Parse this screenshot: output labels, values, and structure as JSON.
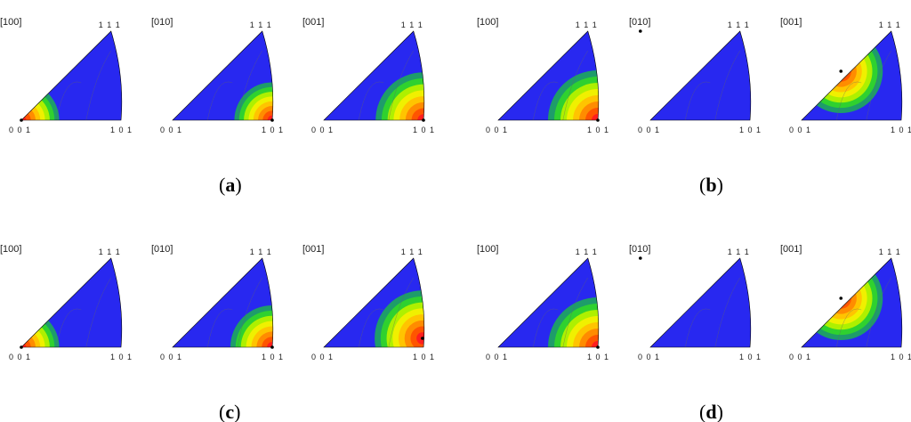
{
  "colors": {
    "background": "#2828f0",
    "levels": [
      "#2828f0",
      "#1e9c6a",
      "#2fd12f",
      "#aef000",
      "#f0f000",
      "#ffc400",
      "#ff8c00",
      "#ff5500",
      "#ff1e1e"
    ],
    "outline": "#000000",
    "grid": "#666666"
  },
  "rows": [
    {
      "groups": [
        {
          "caption": {
            "open": "(",
            "letter": "a",
            "close": ")"
          },
          "panels": [
            {
              "direction": "[100]",
              "corners": {
                "top": "1 1 1",
                "left": "0 0 1",
                "right": "1 0 1"
              },
              "peak": {
                "u": 0.0,
                "v": 0.0
              },
              "radius": 0.38
            },
            {
              "direction": "[010]",
              "corners": {
                "top": "1 1 1",
                "left": "0 0 1",
                "right": "1 0 1"
              },
              "peak": {
                "u": 1.0,
                "v": 0.0
              },
              "radius": 0.38
            },
            {
              "direction": "[001]",
              "corners": {
                "top": "1 1 1",
                "left": "0 0 1",
                "right": "1 0 1"
              },
              "peak": {
                "u": 1.0,
                "v": 0.0
              },
              "radius": 0.48
            }
          ]
        },
        {
          "caption": {
            "open": "(",
            "letter": "b",
            "close": ")"
          },
          "panels": [
            {
              "direction": "[100]",
              "corners": {
                "top": "1 1 1",
                "left": "0 0 1",
                "right": "1 0 1"
              },
              "peak": {
                "u": 1.0,
                "v": 0.0
              },
              "radius": 0.5
            },
            {
              "direction": "[010]",
              "corners": {
                "top": "1 1 1",
                "left": "0 0 1",
                "right": "1 0 1"
              },
              "peak": {
                "u": 0.0,
                "v": 1.0
              },
              "radius": 0.48
            },
            {
              "direction": "[001]",
              "corners": {
                "top": "1 1 1",
                "left": "0 0 1",
                "right": "1 0 1"
              },
              "peak": {
                "u": 0.45,
                "v": 0.55
              },
              "radius": 0.42
            }
          ]
        }
      ]
    },
    {
      "groups": [
        {
          "caption": {
            "open": "(",
            "letter": "c",
            "close": ")"
          },
          "panels": [
            {
              "direction": "[100]",
              "corners": {
                "top": "1 1 1",
                "left": "0 0 1",
                "right": "1 0 1"
              },
              "peak": {
                "u": 0.0,
                "v": 0.0
              },
              "radius": 0.38
            },
            {
              "direction": "[010]",
              "corners": {
                "top": "1 1 1",
                "left": "0 0 1",
                "right": "1 0 1"
              },
              "peak": {
                "u": 1.0,
                "v": 0.0
              },
              "radius": 0.42
            },
            {
              "direction": "[001]",
              "corners": {
                "top": "1 1 1",
                "left": "0 0 1",
                "right": "1 0 1"
              },
              "peak": {
                "u": 1.0,
                "v": 0.1
              },
              "radius": 0.48
            }
          ]
        },
        {
          "caption": {
            "open": "(",
            "letter": "d",
            "close": ")"
          },
          "panels": [
            {
              "direction": "[100]",
              "corners": {
                "top": "1 1 1",
                "left": "0 0 1",
                "right": "1 0 1"
              },
              "peak": {
                "u": 1.0,
                "v": 0.0
              },
              "radius": 0.5
            },
            {
              "direction": "[010]",
              "corners": {
                "top": "1 1 1",
                "left": "0 0 1",
                "right": "1 0 1"
              },
              "peak": {
                "u": 0.0,
                "v": 1.0
              },
              "radius": 0.48
            },
            {
              "direction": "[001]",
              "corners": {
                "top": "1 1 1",
                "left": "0 0 1",
                "right": "1 0 1"
              },
              "peak": {
                "u": 0.45,
                "v": 0.55
              },
              "radius": 0.42
            }
          ]
        }
      ]
    }
  ]
}
